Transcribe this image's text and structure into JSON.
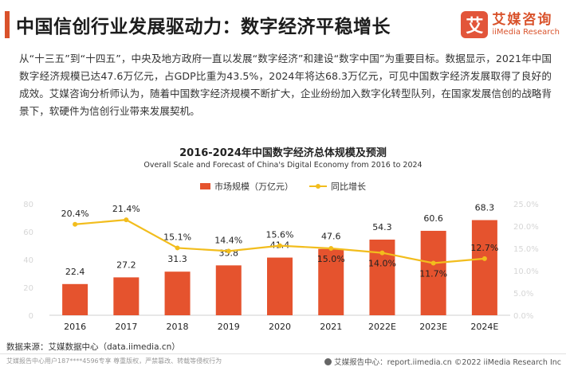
{
  "header": {
    "title": "中国信创行业发展驱动力：数字经济平稳增长",
    "logo_mark": "艾",
    "logo_cn": "艾媒咨询",
    "logo_en": "iiMedia Research"
  },
  "intro": "从“十三五”到“十四五”，中央及地方政府一直以发展“数字经济”和建设“数字中国”为重要目标。数据显示，2021年中国数字经济规模已达47.6万亿元，占GDP比重为43.5%，2024年将达68.3万亿元，可见中国数字经济发展取得了良好的成效。艾媒咨询分析师认为，随着中国数字经济规模不断扩大，企业纷纷加入数字化转型队列，在国家发展信创的战略背景下，软硬件为信创行业带来发展契机。",
  "chart_data": {
    "type": "bar",
    "title": "2016-2024年中国数字经济总体规模及预测",
    "subtitle": "Overall Scale and Forecast of China's Digital Economy from 2016 to 2024",
    "categories": [
      "2016",
      "2017",
      "2018",
      "2019",
      "2020",
      "2021",
      "2022E",
      "2023E",
      "2024E"
    ],
    "series": [
      {
        "name": "市场规模（万亿元）",
        "type": "bar",
        "axis": "left",
        "color": "#e5532e",
        "values": [
          22.4,
          27.2,
          31.3,
          35.8,
          41.4,
          47.6,
          54.3,
          60.6,
          68.3
        ],
        "labels": [
          "22.4",
          "27.2",
          "31.3",
          "35.8",
          "41.4",
          "47.6",
          "54.3",
          "60.6",
          "68.3"
        ]
      },
      {
        "name": "同比增长",
        "type": "line",
        "axis": "right",
        "color": "#f2bd1d",
        "values": [
          20.4,
          21.4,
          15.1,
          14.4,
          15.6,
          15.0,
          14.0,
          11.7,
          12.7
        ],
        "labels": [
          "20.4%",
          "21.4%",
          "15.1%",
          "14.4%",
          "15.6%",
          "15.0%",
          "14.0%",
          "11.7%",
          "12.7%"
        ]
      }
    ],
    "left_axis": {
      "ticks": [
        "0",
        "20",
        "40",
        "60",
        "80"
      ],
      "ylim": [
        0,
        80
      ]
    },
    "right_axis": {
      "ticks": [
        "0.0%",
        "5.0%",
        "10.0%",
        "15.0%",
        "20.0%",
        "25.0%"
      ],
      "ylim": [
        0,
        25
      ]
    },
    "legend_position": "top-center",
    "grid": false
  },
  "footer": {
    "source": "数据来源：艾媒数据中心（data.iimedia.cn）",
    "left_note": "艾媒报告中心用户187****4596专享 尊重版权，严禁篡改、转载等侵权行为",
    "right_note": "艾媒报告中心：report.iimedia.cn ©2022 iiMedia Research Inc"
  }
}
